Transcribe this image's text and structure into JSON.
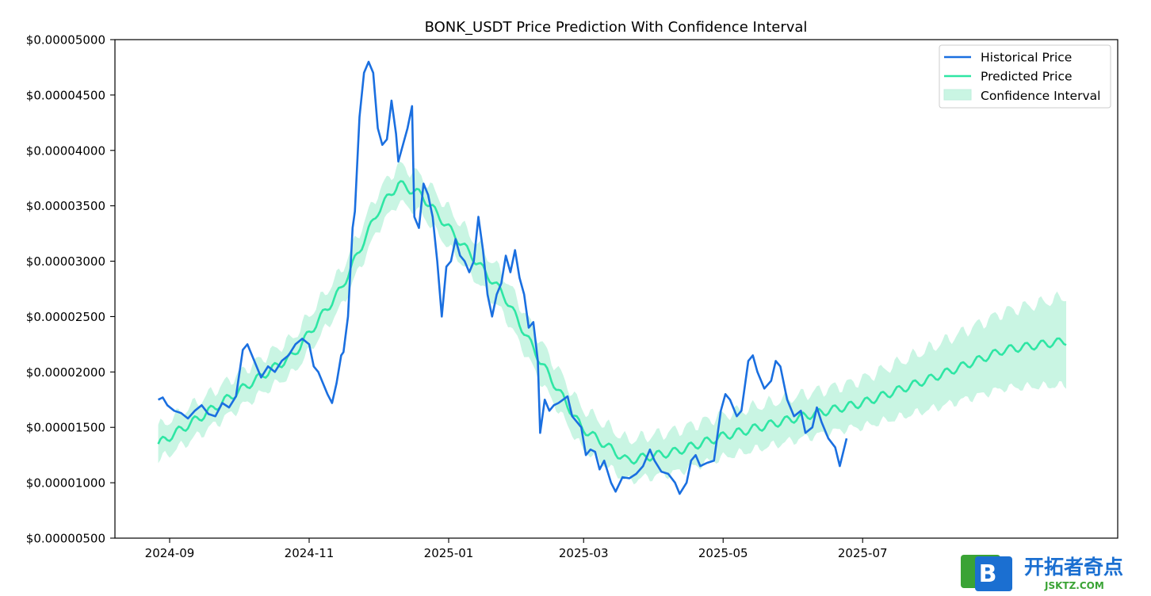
{
  "chart_data": {
    "type": "line",
    "title": "BONK_USDT Price Prediction With Confidence Interval",
    "xlabel": "",
    "ylabel": "",
    "ylim": [
      5e-06,
      5e-05
    ],
    "y_ticks": [
      "$0.00005000",
      "$0.00004500",
      "$0.00004000",
      "$0.00003500",
      "$0.00003000",
      "$0.00002500",
      "$0.00002000",
      "$0.00001500",
      "$0.00001000",
      "$0.00000500"
    ],
    "x_ticks": [
      "2024-09",
      "2024-11",
      "2025-01",
      "2025-03",
      "2025-05",
      "2025-07"
    ],
    "legend_position": "top-right",
    "grid": false,
    "series": [
      {
        "name": "Historical Price",
        "color": "#1a6fe0",
        "points": [
          [
            "2024-08-27",
            1.75e-05
          ],
          [
            "2024-08-29",
            1.77e-05
          ],
          [
            "2024-08-31",
            1.7e-05
          ],
          [
            "2024-09-03",
            1.65e-05
          ],
          [
            "2024-09-06",
            1.63e-05
          ],
          [
            "2024-09-09",
            1.58e-05
          ],
          [
            "2024-09-12",
            1.65e-05
          ],
          [
            "2024-09-15",
            1.7e-05
          ],
          [
            "2024-09-18",
            1.62e-05
          ],
          [
            "2024-09-21",
            1.6e-05
          ],
          [
            "2024-09-24",
            1.72e-05
          ],
          [
            "2024-09-27",
            1.68e-05
          ],
          [
            "2024-09-30",
            1.78e-05
          ],
          [
            "2024-10-03",
            2.2e-05
          ],
          [
            "2024-10-05",
            2.25e-05
          ],
          [
            "2024-10-08",
            2.1e-05
          ],
          [
            "2024-10-11",
            1.95e-05
          ],
          [
            "2024-10-14",
            2.05e-05
          ],
          [
            "2024-10-17",
            2e-05
          ],
          [
            "2024-10-20",
            2.1e-05
          ],
          [
            "2024-10-23",
            2.15e-05
          ],
          [
            "2024-10-26",
            2.25e-05
          ],
          [
            "2024-10-29",
            2.3e-05
          ],
          [
            "2024-11-01",
            2.25e-05
          ],
          [
            "2024-11-03",
            2.05e-05
          ],
          [
            "2024-11-05",
            2e-05
          ],
          [
            "2024-11-07",
            1.9e-05
          ],
          [
            "2024-11-09",
            1.8e-05
          ],
          [
            "2024-11-11",
            1.72e-05
          ],
          [
            "2024-11-13",
            1.9e-05
          ],
          [
            "2024-11-15",
            2.15e-05
          ],
          [
            "2024-11-16",
            2.18e-05
          ],
          [
            "2024-11-18",
            2.5e-05
          ],
          [
            "2024-11-20",
            3.3e-05
          ],
          [
            "2024-11-21",
            3.45e-05
          ],
          [
            "2024-11-23",
            4.3e-05
          ],
          [
            "2024-11-25",
            4.7e-05
          ],
          [
            "2024-11-27",
            4.8e-05
          ],
          [
            "2024-11-29",
            4.7e-05
          ],
          [
            "2024-12-01",
            4.2e-05
          ],
          [
            "2024-12-03",
            4.05e-05
          ],
          [
            "2024-12-05",
            4.1e-05
          ],
          [
            "2024-12-07",
            4.45e-05
          ],
          [
            "2024-12-09",
            4.15e-05
          ],
          [
            "2024-12-10",
            3.9e-05
          ],
          [
            "2024-12-12",
            4.05e-05
          ],
          [
            "2024-12-14",
            4.2e-05
          ],
          [
            "2024-12-16",
            4.4e-05
          ],
          [
            "2024-12-17",
            3.4e-05
          ],
          [
            "2024-12-19",
            3.3e-05
          ],
          [
            "2024-12-21",
            3.7e-05
          ],
          [
            "2024-12-23",
            3.6e-05
          ],
          [
            "2024-12-25",
            3.4e-05
          ],
          [
            "2024-12-27",
            3e-05
          ],
          [
            "2024-12-29",
            2.5e-05
          ],
          [
            "2024-12-31",
            2.95e-05
          ],
          [
            "2025-01-02",
            3e-05
          ],
          [
            "2025-01-04",
            3.2e-05
          ],
          [
            "2025-01-06",
            3.05e-05
          ],
          [
            "2025-01-08",
            3e-05
          ],
          [
            "2025-01-10",
            2.9e-05
          ],
          [
            "2025-01-12",
            3e-05
          ],
          [
            "2025-01-14",
            3.4e-05
          ],
          [
            "2025-01-16",
            3.1e-05
          ],
          [
            "2025-01-18",
            2.7e-05
          ],
          [
            "2025-01-20",
            2.5e-05
          ],
          [
            "2025-01-22",
            2.7e-05
          ],
          [
            "2025-01-24",
            2.8e-05
          ],
          [
            "2025-01-26",
            3.05e-05
          ],
          [
            "2025-01-28",
            2.9e-05
          ],
          [
            "2025-01-30",
            3.1e-05
          ],
          [
            "2025-02-01",
            2.85e-05
          ],
          [
            "2025-02-03",
            2.7e-05
          ],
          [
            "2025-02-05",
            2.4e-05
          ],
          [
            "2025-02-07",
            2.45e-05
          ],
          [
            "2025-02-09",
            2.1e-05
          ],
          [
            "2025-02-10",
            1.45e-05
          ],
          [
            "2025-02-12",
            1.75e-05
          ],
          [
            "2025-02-14",
            1.65e-05
          ],
          [
            "2025-02-16",
            1.7e-05
          ],
          [
            "2025-02-18",
            1.72e-05
          ],
          [
            "2025-02-20",
            1.75e-05
          ],
          [
            "2025-02-22",
            1.78e-05
          ],
          [
            "2025-02-24",
            1.6e-05
          ],
          [
            "2025-02-26",
            1.55e-05
          ],
          [
            "2025-02-28",
            1.5e-05
          ],
          [
            "2025-03-02",
            1.25e-05
          ],
          [
            "2025-03-04",
            1.3e-05
          ],
          [
            "2025-03-06",
            1.28e-05
          ],
          [
            "2025-03-08",
            1.12e-05
          ],
          [
            "2025-03-10",
            1.2e-05
          ],
          [
            "2025-03-13",
            1e-05
          ],
          [
            "2025-03-15",
            9.2e-06
          ],
          [
            "2025-03-18",
            1.05e-05
          ],
          [
            "2025-03-21",
            1.04e-05
          ],
          [
            "2025-03-24",
            1.08e-05
          ],
          [
            "2025-03-27",
            1.15e-05
          ],
          [
            "2025-03-30",
            1.3e-05
          ],
          [
            "2025-04-01",
            1.2e-05
          ],
          [
            "2025-04-04",
            1.1e-05
          ],
          [
            "2025-04-07",
            1.08e-05
          ],
          [
            "2025-04-10",
            1e-05
          ],
          [
            "2025-04-12",
            9e-06
          ],
          [
            "2025-04-15",
            1e-05
          ],
          [
            "2025-04-17",
            1.2e-05
          ],
          [
            "2025-04-19",
            1.25e-05
          ],
          [
            "2025-04-21",
            1.15e-05
          ],
          [
            "2025-04-24",
            1.18e-05
          ],
          [
            "2025-04-27",
            1.2e-05
          ],
          [
            "2025-04-30",
            1.65e-05
          ],
          [
            "2025-05-02",
            1.8e-05
          ],
          [
            "2025-05-04",
            1.75e-05
          ],
          [
            "2025-05-07",
            1.6e-05
          ],
          [
            "2025-05-09",
            1.65e-05
          ],
          [
            "2025-05-12",
            2.1e-05
          ],
          [
            "2025-05-14",
            2.15e-05
          ],
          [
            "2025-05-16",
            2e-05
          ],
          [
            "2025-05-19",
            1.85e-05
          ],
          [
            "2025-05-22",
            1.92e-05
          ],
          [
            "2025-05-24",
            2.1e-05
          ],
          [
            "2025-05-26",
            2.05e-05
          ],
          [
            "2025-05-29",
            1.75e-05
          ],
          [
            "2025-06-01",
            1.6e-05
          ],
          [
            "2025-06-04",
            1.65e-05
          ],
          [
            "2025-06-06",
            1.45e-05
          ],
          [
            "2025-06-09",
            1.5e-05
          ],
          [
            "2025-06-11",
            1.68e-05
          ],
          [
            "2025-06-13",
            1.55e-05
          ],
          [
            "2025-06-16",
            1.4e-05
          ],
          [
            "2025-06-19",
            1.32e-05
          ],
          [
            "2025-06-21",
            1.15e-05
          ],
          [
            "2025-06-24",
            1.4e-05
          ]
        ]
      },
      {
        "name": "Predicted Price",
        "color": "#2ee6a4",
        "points": [
          [
            "2024-08-27",
            1.35e-05
          ],
          [
            "2024-09-15",
            1.6e-05
          ],
          [
            "2024-10-05",
            1.88e-05
          ],
          [
            "2024-10-25",
            2.15e-05
          ],
          [
            "2024-11-15",
            2.75e-05
          ],
          [
            "2024-12-01",
            3.45e-05
          ],
          [
            "2024-12-10",
            3.7e-05
          ],
          [
            "2024-12-20",
            3.6e-05
          ],
          [
            "2025-01-05",
            3.2e-05
          ],
          [
            "2025-01-25",
            2.7e-05
          ],
          [
            "2025-02-10",
            2.1e-05
          ],
          [
            "2025-02-28",
            1.5e-05
          ],
          [
            "2025-03-20",
            1.2e-05
          ],
          [
            "2025-04-10",
            1.28e-05
          ],
          [
            "2025-05-01",
            1.42e-05
          ],
          [
            "2025-06-01",
            1.58e-05
          ],
          [
            "2025-07-01",
            1.72e-05
          ],
          [
            "2025-08-01",
            1.95e-05
          ],
          [
            "2025-09-01",
            2.2e-05
          ],
          [
            "2025-09-28",
            2.28e-05
          ]
        ]
      },
      {
        "name": "Confidence Interval",
        "color": "#c9f5e3",
        "band_halfwidth": [
          [
            "2024-08-27",
            1.5e-06
          ],
          [
            "2025-06-24",
            2e-06
          ],
          [
            "2025-09-28",
            4e-06
          ]
        ]
      }
    ]
  },
  "watermark": {
    "logo_letter": "B",
    "text": "开拓者奇点",
    "url": "JSKTZ.COM"
  }
}
